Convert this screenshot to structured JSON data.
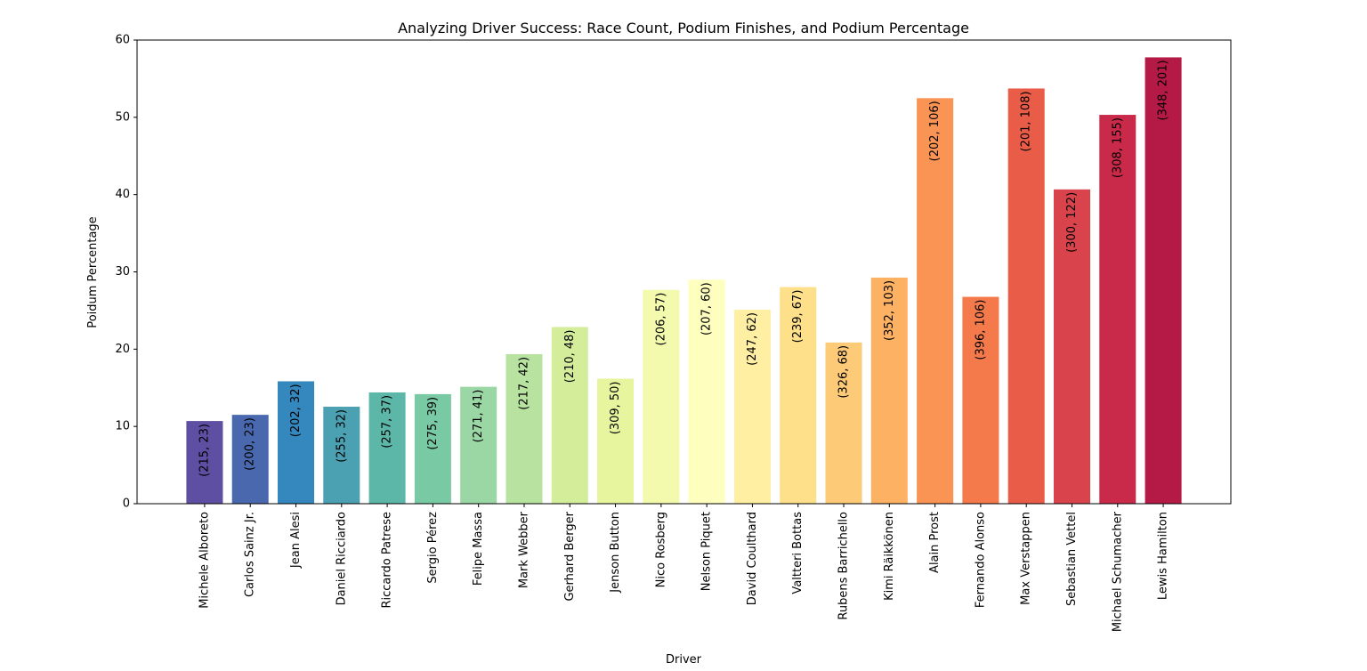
{
  "chart_data": {
    "type": "bar",
    "title": "Analyzing Driver Success: Race Count, Podium Finishes, and Podium Percentage",
    "xlabel": "Driver",
    "ylabel": "Poidum Percentage",
    "ylim": [
      0,
      60
    ],
    "yticks": [
      "0",
      "10",
      "20",
      "30",
      "40",
      "50",
      "60"
    ],
    "grid": false,
    "categories": [
      "Michele Alboreto",
      "Carlos Sainz Jr.",
      "Jean Alesi",
      "Daniel Ricciardo",
      "Riccardo Patrese",
      "Sergio Pérez",
      "Felipe Massa",
      "Mark Webber",
      "Gerhard Berger",
      "Jenson Button",
      "Nico Rosberg",
      "Nelson Piquet",
      "David Coulthard",
      "Valtteri Bottas",
      "Rubens Barrichello",
      "Kimi Räikkönen",
      "Alain Prost",
      "Fernando Alonso",
      "Max Verstappen",
      "Sebastian Vettel",
      "Michael Schumacher",
      "Lewis Hamilton"
    ],
    "values": [
      10.7,
      11.5,
      15.84,
      12.55,
      14.4,
      14.18,
      15.13,
      19.35,
      22.86,
      16.18,
      27.67,
      28.99,
      25.1,
      28.03,
      20.86,
      29.26,
      52.48,
      26.77,
      53.73,
      40.67,
      50.32,
      57.76
    ],
    "data_labels": [
      "(215, 23)",
      "(200, 23)",
      "(202, 32)",
      "(255, 32)",
      "(257, 37)",
      "(275, 39)",
      "(271, 41)",
      "(217, 42)",
      "(210, 48)",
      "(309, 50)",
      "(206, 57)",
      "(207, 60)",
      "(247, 62)",
      "(239, 67)",
      "(326, 68)",
      "(352, 103)",
      "(202, 106)",
      "(396, 106)",
      "(201, 108)",
      "(300, 122)",
      "(308, 155)",
      "(348, 201)"
    ],
    "colors": [
      "#5e4fa2",
      "#4a68ad",
      "#3588bd",
      "#4ba0b1",
      "#5db7a9",
      "#79c9a4",
      "#9ad7a4",
      "#b8e2a0",
      "#d3ed9b",
      "#e8f59f",
      "#f3faad",
      "#feffbe",
      "#feefa2",
      "#fee08b",
      "#fdca78",
      "#fdb163",
      "#f99455",
      "#f47a4b",
      "#e95c47",
      "#d9444c",
      "#c92a4a",
      "#b51945"
    ]
  }
}
